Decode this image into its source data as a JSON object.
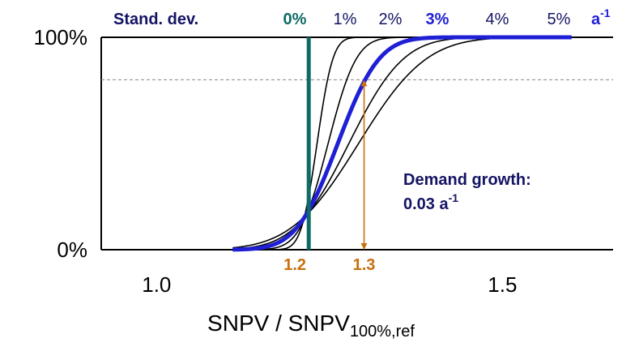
{
  "chart_data": {
    "type": "line",
    "title": "",
    "xlabel_main": "SNPV / SNPV",
    "xlabel_sub": "100%,ref",
    "ylabel": "",
    "xlim": [
      0.92,
      1.66
    ],
    "ylim": [
      0,
      1
    ],
    "x_ticks": [
      {
        "value": 1.0,
        "label": "1.0"
      },
      {
        "value": 1.5,
        "label": "1.5"
      }
    ],
    "y_ticks": [
      {
        "value": 0,
        "label": "0%"
      },
      {
        "value": 1,
        "label": "100%"
      }
    ],
    "reference_line_y": 0.8,
    "legend_title": "Stand. dev.",
    "legend_unit": "a",
    "legend_unit_sup": "-1",
    "legend_labels": [
      "0%",
      "1%",
      "2%",
      "3%",
      "4%",
      "5%"
    ],
    "series": [
      {
        "label": "0%",
        "color": "#0f6b66",
        "type": "vertical",
        "x": 1.22
      },
      {
        "label": "1%",
        "color": "#000000",
        "mu": 1.232,
        "sigma": 0.018
      },
      {
        "label": "2%",
        "color": "#000000",
        "mu": 1.248,
        "sigma": 0.032
      },
      {
        "label": "3%",
        "color": "#1f1fd6",
        "highlight": true,
        "mu": 1.262,
        "sigma": 0.047
      },
      {
        "label": "4%",
        "color": "#000000",
        "mu": 1.278,
        "sigma": 0.062
      },
      {
        "label": "5%",
        "color": "#000000",
        "mu": 1.292,
        "sigma": 0.077
      }
    ],
    "curve_range": [
      1.11,
      1.6
    ],
    "marker_labels": [
      {
        "value": 1.2,
        "label": "1.2"
      },
      {
        "value": 1.3,
        "label": "1.3"
      }
    ],
    "annotation": {
      "line1": "Demand growth:",
      "line2_main": "0.03 a",
      "line2_sup": "-1"
    },
    "colors": {
      "legend_text": "#141464",
      "marker": "#c8700e",
      "highlight": "#1f1fd6",
      "zero_line": "#0f6b66",
      "gridline": "#888888"
    }
  }
}
